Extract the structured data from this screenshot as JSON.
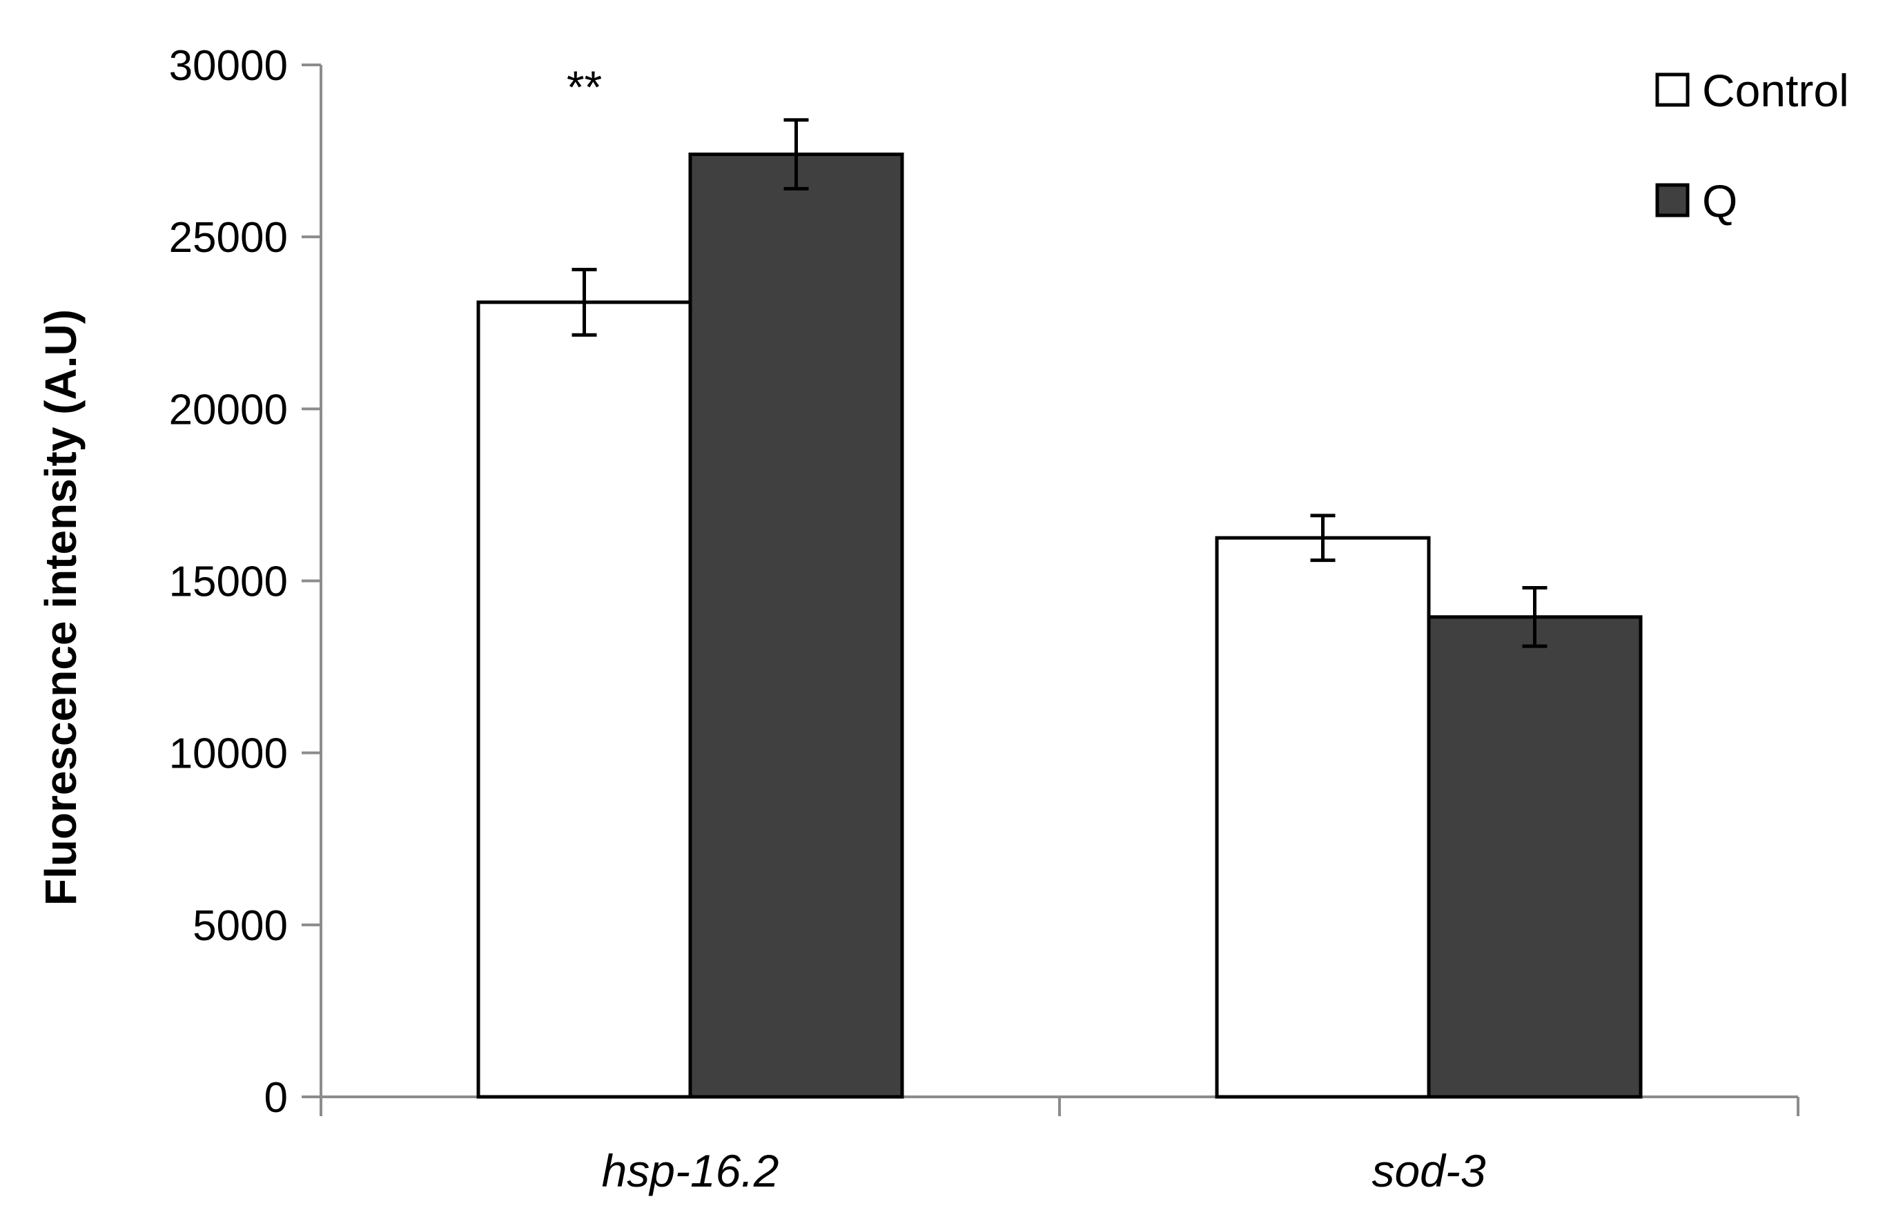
{
  "chart_data": {
    "type": "bar",
    "title": "",
    "xlabel": "",
    "ylabel": "Fluorescence intensity (A.U)",
    "categories": [
      "hsp-16.2",
      "sod-3"
    ],
    "series": [
      {
        "name": "Control",
        "values": [
          23100,
          16250
        ],
        "errors": [
          950,
          650
        ],
        "color": "#ffffff"
      },
      {
        "name": "Q",
        "values": [
          27400,
          13950
        ],
        "errors": [
          1000,
          850
        ],
        "color": "#404040"
      }
    ],
    "ylim": [
      0,
      30000
    ],
    "yticks": [
      0,
      5000,
      10000,
      15000,
      20000,
      25000,
      30000
    ],
    "ytick_labels": [
      "0",
      "5000",
      "10000",
      "15000",
      "20000",
      "25000",
      "30000"
    ],
    "grid": false,
    "legend_position": "top-right",
    "annotations": [
      {
        "text": "**",
        "category": "hsp-16.2",
        "y": 29700
      }
    ],
    "colors": {
      "axis": "#8c8c8c",
      "outline": "#000000"
    }
  }
}
